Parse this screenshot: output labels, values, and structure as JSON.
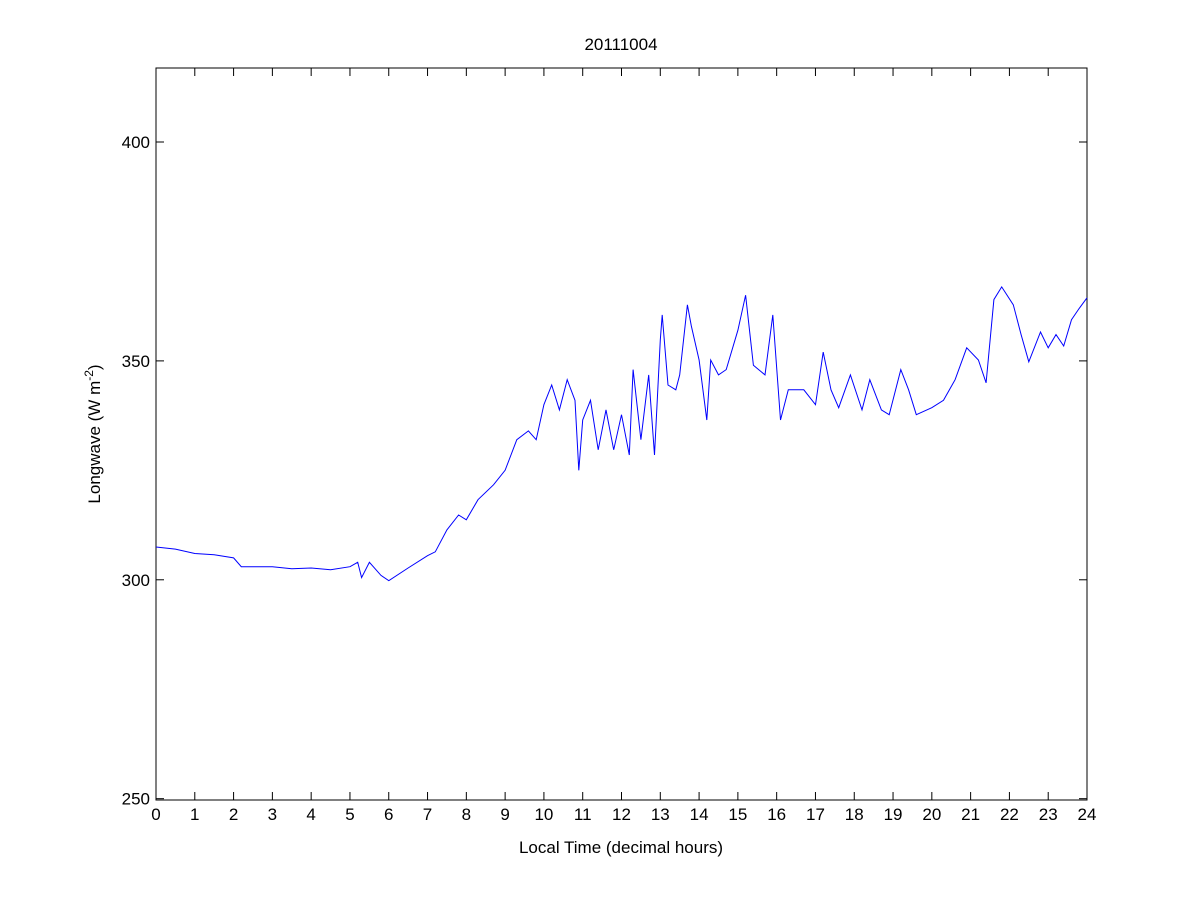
{
  "chart_data": {
    "type": "line",
    "title": "20111004",
    "xlabel": "Local Time (decimal hours)",
    "ylabel_main": "Longwave (W m",
    "ylabel_sup": "-2",
    "ylabel_close": ")",
    "xlim": [
      0,
      24
    ],
    "ylim": [
      249.7,
      416.9
    ],
    "xticks": [
      0,
      1,
      2,
      3,
      4,
      5,
      6,
      7,
      8,
      9,
      10,
      11,
      12,
      13,
      14,
      15,
      16,
      17,
      18,
      19,
      20,
      21,
      22,
      23,
      24
    ],
    "yticks": [
      250,
      300,
      350,
      400
    ],
    "grid": false,
    "line_color": "#0000ff",
    "series": [
      {
        "x": [
          0,
          0.5,
          1,
          1.5,
          2,
          2.2,
          2.5,
          3,
          3.5,
          4,
          4.5,
          5,
          5.2,
          5.3,
          5.5,
          5.8,
          6,
          6.5,
          7,
          7.2,
          7.5,
          7.8,
          8,
          8.3,
          8.7,
          9,
          9.3,
          9.6,
          9.8,
          10,
          10.2,
          10.4,
          10.6,
          10.8,
          10.9,
          11,
          11.2,
          11.4,
          11.6,
          11.8,
          12,
          12.2,
          12.3,
          12.5,
          12.7,
          12.85,
          13,
          13.05,
          13.2,
          13.4,
          13.5,
          13.7,
          13.8,
          14,
          14.2,
          14.3,
          14.5,
          14.7,
          15,
          15.2,
          15.4,
          15.7,
          15.9,
          16.1,
          16.3,
          16.7,
          17,
          17.2,
          17.4,
          17.6,
          17.9,
          18.2,
          18.4,
          18.7,
          18.9,
          19.2,
          19.4,
          19.6,
          20,
          20.3,
          20.6,
          20.9,
          21.2,
          21.4,
          21.6,
          21.8,
          22.1,
          22.3,
          22.5,
          22.8,
          23,
          23.2,
          23.4,
          23.6,
          23.8,
          24
        ],
        "y": [
          307.5,
          307,
          306,
          305.7,
          305,
          303,
          303,
          303,
          302.5,
          302.7,
          302.3,
          303,
          304,
          300.5,
          304,
          301,
          299.8,
          302.7,
          305.5,
          306.4,
          311.4,
          314.8,
          313.7,
          318.3,
          321.7,
          325,
          332,
          334,
          332,
          340,
          344.5,
          338.8,
          345.7,
          341,
          325,
          336.5,
          341,
          329.7,
          338.8,
          329.7,
          337.7,
          328.5,
          348,
          332,
          346.8,
          328.5,
          354.8,
          360.5,
          344.5,
          343.4,
          346.8,
          362.8,
          358,
          350.2,
          336.5,
          350.2,
          346.8,
          348,
          357,
          365,
          349,
          346.8,
          360.5,
          336.5,
          343.4,
          343.4,
          340,
          352,
          343.4,
          339.3,
          346.8,
          338.8,
          345.7,
          338.8,
          337.7,
          348,
          343.4,
          337.7,
          339.3,
          341,
          345.7,
          353,
          350.2,
          345,
          364,
          366.9,
          362.8,
          356,
          349.8,
          356.6,
          353,
          356,
          353.4,
          359.4,
          362,
          364.4
        ]
      }
    ]
  }
}
